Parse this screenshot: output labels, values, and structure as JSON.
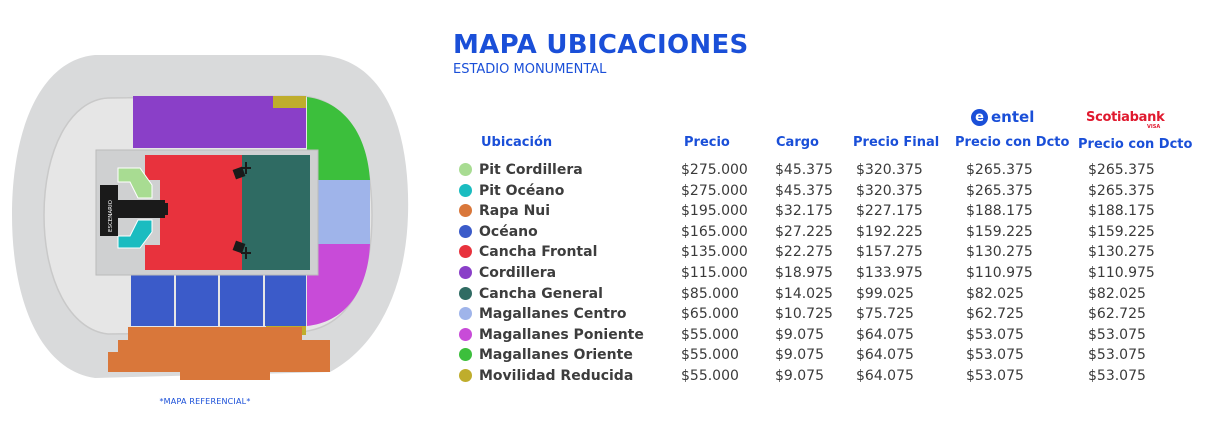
{
  "header": {
    "title": "MAPA UBICACIONES",
    "subtitle": "ESTADIO MONUMENTAL"
  },
  "map": {
    "stage_label": "ESCENARIO",
    "caption": "*MAPA REFERENCIAL*"
  },
  "columns": {
    "ubicacion": "Ubicación",
    "precio": "Precio",
    "cargo": "Cargo",
    "precio_final": "Precio Final",
    "entel": "Precio con Dcto",
    "scotia": "Precio con Dcto"
  },
  "brands": {
    "entel": {
      "mark": "e",
      "name": "entel"
    },
    "scotia": {
      "name": "Scotiabank",
      "sub": "VISA"
    }
  },
  "rows": [
    {
      "name": "Pit Cordillera",
      "color": "#a8dc92",
      "precio": "$275.000",
      "cargo": "$45.375",
      "final": "$320.375",
      "entel": "$265.375",
      "scotia": "$265.375"
    },
    {
      "name": "Pit Océano",
      "color": "#1bbcc0",
      "precio": "$275.000",
      "cargo": "$45.375",
      "final": "$320.375",
      "entel": "$265.375",
      "scotia": "$265.375"
    },
    {
      "name": "Rapa Nui",
      "color": "#d9773a",
      "precio": "$195.000",
      "cargo": "$32.175",
      "final": "$227.175",
      "entel": "$188.175",
      "scotia": "$188.175"
    },
    {
      "name": "Océano",
      "color": "#3b5bc9",
      "precio": "$165.000",
      "cargo": "$27.225",
      "final": "$192.225",
      "entel": "$159.225",
      "scotia": "$159.225"
    },
    {
      "name": "Cancha Frontal",
      "color": "#e8323d",
      "precio": "$135.000",
      "cargo": "$22.275",
      "final": "$157.275",
      "entel": "$130.275",
      "scotia": "$130.275"
    },
    {
      "name": "Cordillera",
      "color": "#8a3fc8",
      "precio": "$115.000",
      "cargo": "$18.975",
      "final": "$133.975",
      "entel": "$110.975",
      "scotia": "$110.975"
    },
    {
      "name": "Cancha General",
      "color": "#2f6b63",
      "precio": "$85.000",
      "cargo": "$14.025",
      "final": "$99.025",
      "entel": "$82.025",
      "scotia": "$82.025"
    },
    {
      "name": "Magallanes Centro",
      "color": "#9fb4ea",
      "precio": "$65.000",
      "cargo": "$10.725",
      "final": "$75.725",
      "entel": "$62.725",
      "scotia": "$62.725"
    },
    {
      "name": "Magallanes Poniente",
      "color": "#c84bd8",
      "precio": "$55.000",
      "cargo": "$9.075",
      "final": "$64.075",
      "entel": "$53.075",
      "scotia": "$53.075"
    },
    {
      "name": "Magallanes Oriente",
      "color": "#3cbf3c",
      "precio": "$55.000",
      "cargo": "$9.075",
      "final": "$64.075",
      "entel": "$53.075",
      "scotia": "$53.075"
    },
    {
      "name": "Movilidad Reducida",
      "color": "#bfad2c",
      "precio": "$55.000",
      "cargo": "$9.075",
      "final": "$64.075",
      "entel": "$53.075",
      "scotia": "$53.075"
    }
  ]
}
